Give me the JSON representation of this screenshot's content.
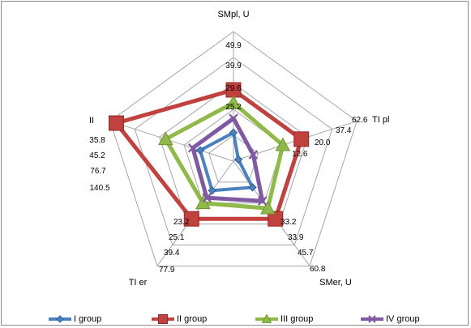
{
  "chart_data": {
    "type": "radar",
    "axes": [
      {
        "label": "SMpl, U",
        "ticks": [
          "25.2",
          "29.6",
          "39.9",
          "49.9"
        ]
      },
      {
        "label": "TI pl",
        "ticks": [
          "12.6",
          "20.0",
          "37.4",
          "62.6"
        ]
      },
      {
        "label": "SMer, U",
        "ticks": [
          "33.2",
          "33.9",
          "45.7",
          "60.8"
        ]
      },
      {
        "label": "TI er",
        "ticks": [
          "23.2",
          "25.1",
          "39.4",
          "77.9"
        ]
      },
      {
        "label": "II",
        "ticks": [
          "35.8",
          "45.2",
          "76.7",
          "140.5"
        ]
      }
    ],
    "levels": 5,
    "series": [
      {
        "name": "I group",
        "color": "#4a82c0",
        "marker": "diamond",
        "values": [
          0.22,
          0.04,
          0.25,
          0.28,
          0.27
        ]
      },
      {
        "name": "II group",
        "color": "#c0413d",
        "marker": "square",
        "values": [
          0.55,
          0.55,
          0.55,
          0.55,
          0.95
        ]
      },
      {
        "name": "III group",
        "color": "#8fba4a",
        "marker": "triangle",
        "values": [
          0.45,
          0.4,
          0.45,
          0.4,
          0.55
        ]
      },
      {
        "name": "IV group",
        "color": "#7f5aa2",
        "marker": "x",
        "values": [
          0.33,
          0.16,
          0.38,
          0.35,
          0.33
        ]
      }
    ],
    "legend_position": "bottom"
  }
}
